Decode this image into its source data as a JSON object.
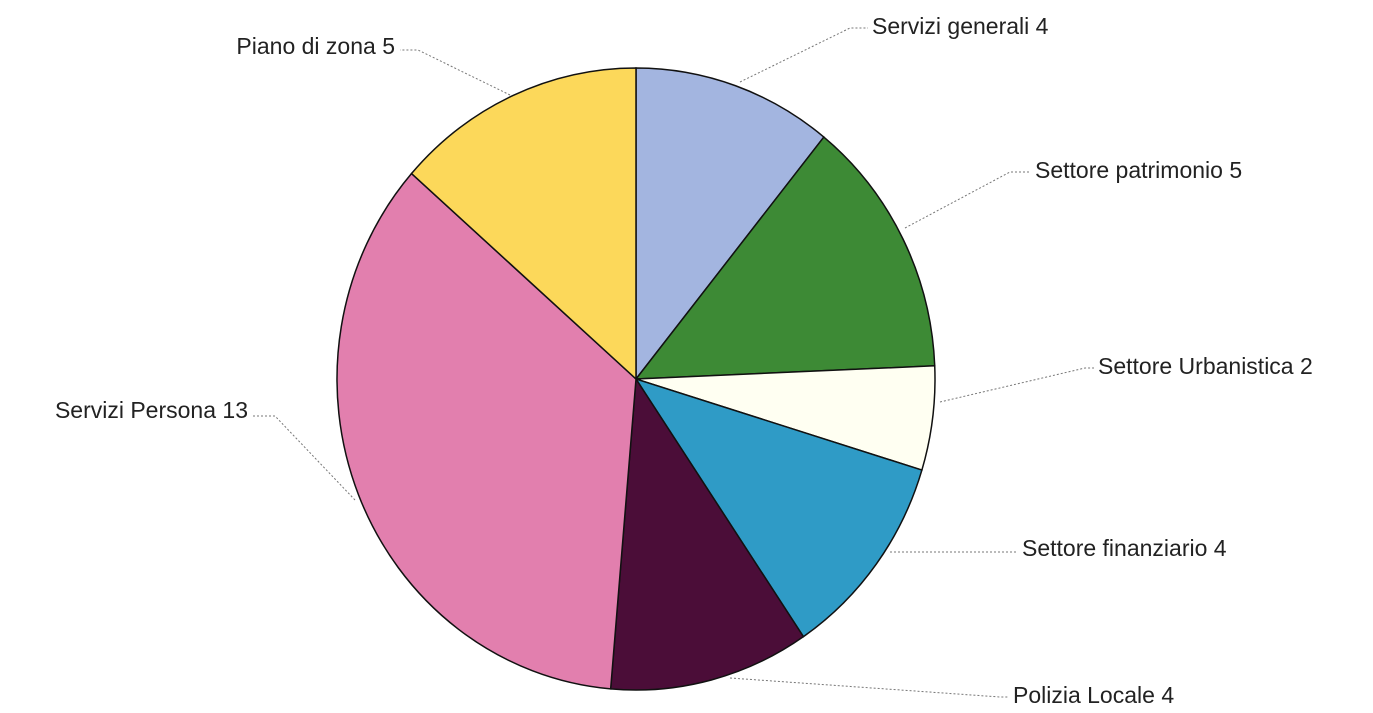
{
  "chart_data": {
    "type": "pie",
    "categories": [
      "Servizi generali",
      "Settore patrimonio",
      "Settore Urbanistica",
      "Settore finanziario",
      "Polizia Locale",
      "Servizi Persona",
      "Piano di zona"
    ],
    "values": [
      4,
      5,
      2,
      4,
      4,
      13,
      5
    ],
    "colors": [
      "#a3b5e0",
      "#3d8a35",
      "#fffff2",
      "#2f9bc6",
      "#4b0d38",
      "#e27fae",
      "#fcd85a"
    ]
  }
}
